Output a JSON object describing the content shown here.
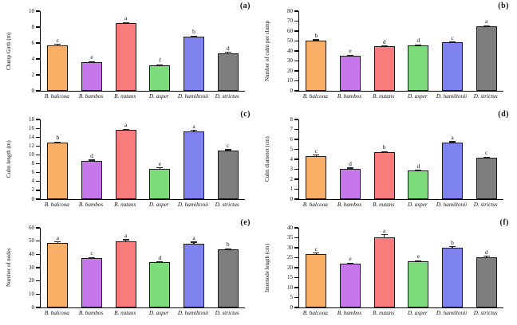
{
  "figure": {
    "categories": [
      "B. balcooa",
      "B. bambos",
      "B. nutans",
      "D. asper",
      "D. hamiltonii",
      "D. strictus"
    ],
    "bar_colors": [
      "#F9B066",
      "#C678EB",
      "#F97C7C",
      "#7CDC7C",
      "#7E83EF",
      "#7D7D7D"
    ],
    "bar_border_color": "#1b1b1b",
    "axis_color": "#000000"
  },
  "chart_data": [
    {
      "type": "bar",
      "panel": "(a)",
      "ylabel": "Clump Girth (m)",
      "xlabel": "",
      "ylim": [
        0,
        10
      ],
      "ystep": 2,
      "grid": false,
      "legend": "none",
      "categories": [
        "B. balcooa",
        "B. bambos",
        "B. nutans",
        "D. asper",
        "D. hamiltonii",
        "D. strictus"
      ],
      "values": [
        5.75,
        3.6,
        8.5,
        3.2,
        6.8,
        4.75
      ],
      "errors": [
        0.1,
        0.08,
        0.12,
        0.08,
        0.1,
        0.1
      ],
      "sig_letters": [
        "c",
        "e",
        "a",
        "f",
        "b",
        "d"
      ]
    },
    {
      "type": "bar",
      "panel": "(b)",
      "ylabel": "Number of culm per clump",
      "xlabel": "",
      "ylim": [
        0,
        80
      ],
      "ystep": 10,
      "grid": false,
      "legend": "none",
      "categories": [
        "B. balcooa",
        "B. bambos",
        "B. nutans",
        "D. asper",
        "D. hamiltonii",
        "D. strictus"
      ],
      "values": [
        50.5,
        35,
        44.5,
        45.5,
        48.5,
        64.5
      ],
      "errors": [
        1,
        0.8,
        1,
        1,
        1,
        1.2
      ],
      "sig_letters": [
        "b",
        "e",
        "d",
        "d",
        "c",
        "a"
      ]
    },
    {
      "type": "bar",
      "panel": "(c)",
      "ylabel": "Culm length (m)",
      "xlabel": "",
      "ylim": [
        0,
        18
      ],
      "ystep": 2,
      "grid": false,
      "legend": "none",
      "categories": [
        "B. balcooa",
        "B. bambos",
        "B. nutans",
        "D. asper",
        "D. hamiltonii",
        "D. strictus"
      ],
      "values": [
        12.7,
        8.6,
        15.6,
        6.9,
        15.3,
        11.0
      ],
      "errors": [
        0.3,
        0.3,
        0.25,
        0.2,
        0.3,
        0.25
      ],
      "sig_letters": [
        "b",
        "d",
        "a",
        "e",
        "a",
        "c"
      ]
    },
    {
      "type": "bar",
      "panel": "(d)",
      "ylabel": "Culm diameter (cm)",
      "xlabel": "",
      "ylim": [
        0,
        8
      ],
      "ystep": 1,
      "grid": false,
      "legend": "none",
      "categories": [
        "B. balcooa",
        "B. bambos",
        "B. nutans",
        "D. asper",
        "D. hamiltonii",
        "D. strictus"
      ],
      "values": [
        4.35,
        3.05,
        4.7,
        2.85,
        5.65,
        4.15
      ],
      "errors": [
        0.1,
        0.1,
        0.12,
        0.1,
        0.15,
        0.1
      ],
      "sig_letters": [
        "c",
        "d",
        "b",
        "d",
        "a",
        "c"
      ]
    },
    {
      "type": "bar",
      "panel": "(e)",
      "ylabel": "Number of nodes",
      "xlabel": "",
      "ylim": [
        0,
        60
      ],
      "ystep": 10,
      "grid": false,
      "legend": "none",
      "categories": [
        "B. balcooa",
        "B. bambos",
        "B. nutans",
        "D. asper",
        "D. hamiltonii",
        "D. strictus"
      ],
      "values": [
        48.8,
        37,
        49.8,
        34,
        48,
        43.8
      ],
      "errors": [
        1,
        1,
        1.5,
        0.8,
        1.5,
        0.6
      ],
      "sig_letters": [
        "a",
        "c",
        "a",
        "d",
        "a",
        "b"
      ]
    },
    {
      "type": "bar",
      "panel": "(f)",
      "ylabel": "Internode length (cm)",
      "xlabel": "",
      "ylim": [
        0,
        40
      ],
      "ystep": 5,
      "grid": false,
      "legend": "none",
      "categories": [
        "B. balcooa",
        "B. bambos",
        "B. nutans",
        "D. asper",
        "D. hamiltonii",
        "D. strictus"
      ],
      "values": [
        27,
        22,
        35.2,
        23.2,
        30.2,
        25.4
      ],
      "errors": [
        0.5,
        0.5,
        1.5,
        0.4,
        0.5,
        0.5
      ],
      "sig_letters": [
        "c",
        "e",
        "a",
        "e",
        "b",
        "d"
      ]
    }
  ]
}
